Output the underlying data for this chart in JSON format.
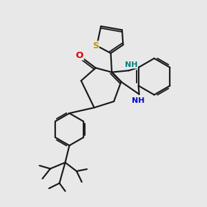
{
  "bg_color": "#e8e8e8",
  "bond_color": "#1a1a1a",
  "S_color": "#b8960c",
  "O_color": "#dd0000",
  "N_color": "#0000cc",
  "NH_color": "#008080",
  "lw": 1.6,
  "figsize": [
    3.0,
    3.0
  ],
  "dpi": 100,
  "xlim": [
    0,
    10
  ],
  "ylim": [
    0,
    10
  ]
}
